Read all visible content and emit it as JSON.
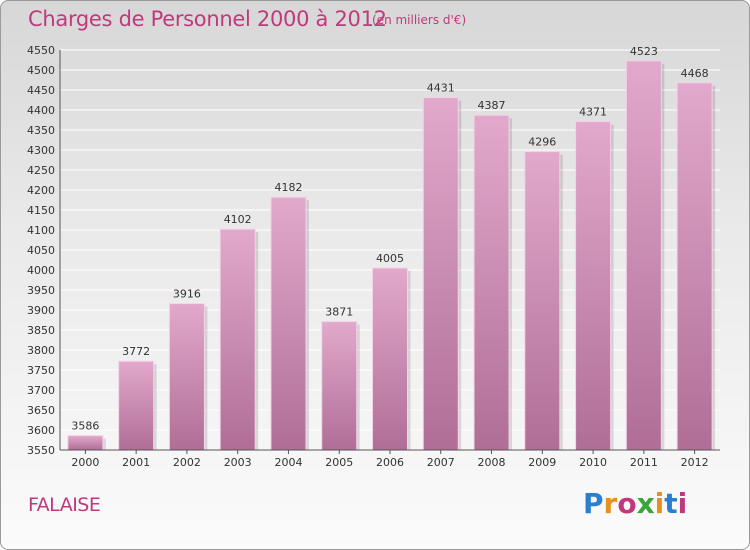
{
  "header": {
    "title": "Charges de Personnel 2000 à 2012",
    "subtitle": "(en milliers d'€)"
  },
  "footer": {
    "city": "FALAISE",
    "logo_text": "Proxiti"
  },
  "colors": {
    "accent": "#c0397d",
    "bar_top": "#e2a9cc",
    "bar_bottom": "#b06e97",
    "grid": "#ffffff",
    "logo": [
      "#2b7fd0",
      "#e8901c",
      "#c0397d",
      "#3aa63a",
      "#e8901c",
      "#2b7fd0",
      "#c0397d"
    ]
  },
  "chart_data": {
    "type": "bar",
    "title": "Charges de Personnel 2000 à 2012",
    "subtitle": "(en milliers d'€)",
    "categories": [
      "2000",
      "2001",
      "2002",
      "2003",
      "2004",
      "2005",
      "2006",
      "2007",
      "2008",
      "2009",
      "2010",
      "2011",
      "2012"
    ],
    "values": [
      3586,
      3772,
      3916,
      4102,
      4182,
      3871,
      4005,
      4431,
      4387,
      4296,
      4371,
      4523,
      4468
    ],
    "ylim": [
      3550,
      4550
    ],
    "ytick_step": 50,
    "yticks": [
      "3550",
      "3600",
      "3650",
      "3700",
      "3750",
      "3800",
      "3850",
      "3900",
      "3950",
      "4000",
      "4050",
      "4100",
      "4150",
      "4200",
      "4250",
      "4300",
      "4350",
      "4400",
      "4450",
      "4500",
      "4550"
    ],
    "grid": true,
    "legend": "none",
    "xlabel": "",
    "ylabel": ""
  }
}
